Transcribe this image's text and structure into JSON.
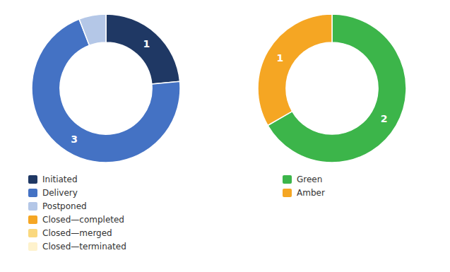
{
  "chart_data": [
    {
      "type": "pie",
      "categories": [
        "Initiated",
        "Delivery",
        "Postponed",
        "Closed—completed",
        "Closed—merged",
        "Closed—terminated"
      ],
      "values": [
        1,
        3,
        0.25,
        null,
        null,
        null
      ],
      "value_labels": [
        "1",
        "3",
        null,
        null,
        null,
        null
      ],
      "colors": [
        "#1F3864",
        "#4472C4",
        "#B4C7E7",
        "#F5A623",
        "#FAD87E",
        "#FEF2CC"
      ],
      "data_labels": true,
      "legend": "lower left"
    },
    {
      "type": "pie",
      "categories": [
        "Green",
        "Amber"
      ],
      "values": [
        2,
        1
      ],
      "colors": [
        "#3CB54A",
        "#F5A623"
      ],
      "data_labels": true,
      "legend": "lower left"
    }
  ]
}
